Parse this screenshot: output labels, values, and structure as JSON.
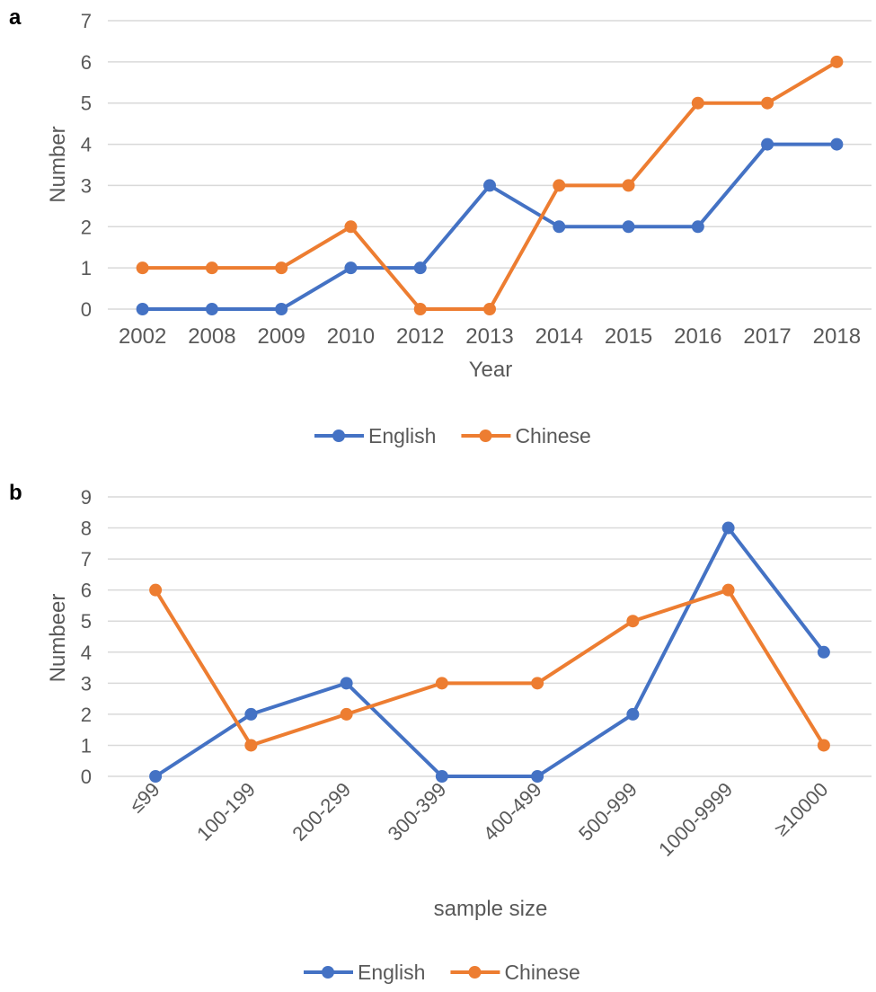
{
  "colors": {
    "english": "#4472c4",
    "chinese": "#ed7d31",
    "grid": "#d9d9d9",
    "text": "#595959"
  },
  "chart_data": [
    {
      "panel": "a",
      "type": "line",
      "xlabel": "Year",
      "ylabel": "Number",
      "ylim": [
        0,
        7
      ],
      "yticks": [
        "0",
        "1",
        "2",
        "3",
        "4",
        "5",
        "6",
        "7"
      ],
      "categories": [
        "2002",
        "2008",
        "2009",
        "2010",
        "2012",
        "2013",
        "2014",
        "2015",
        "2016",
        "2017",
        "2018"
      ],
      "series": [
        {
          "name": "English",
          "color": "#4472c4",
          "values": [
            0,
            0,
            0,
            1,
            1,
            3,
            2,
            2,
            2,
            4,
            4
          ]
        },
        {
          "name": "Chinese",
          "color": "#ed7d31",
          "values": [
            1,
            1,
            1,
            2,
            0,
            0,
            3,
            3,
            5,
            5,
            6
          ]
        }
      ],
      "grid": true,
      "legend": "bottom"
    },
    {
      "panel": "b",
      "type": "line",
      "xlabel": "sample size",
      "ylabel": "Numbeer",
      "ylim": [
        0,
        9
      ],
      "yticks": [
        "0",
        "1",
        "2",
        "3",
        "4",
        "5",
        "6",
        "7",
        "8",
        "9"
      ],
      "categories": [
        "≤99",
        "100-199",
        "200-299",
        "300-399",
        "400-499",
        "500-999",
        "1000-9999",
        "≥10000"
      ],
      "series": [
        {
          "name": "English",
          "color": "#4472c4",
          "values": [
            0,
            2,
            3,
            0,
            0,
            2,
            8,
            4
          ]
        },
        {
          "name": "Chinese",
          "color": "#ed7d31",
          "values": [
            6,
            1,
            2,
            3,
            3,
            5,
            6,
            1
          ]
        }
      ],
      "grid": true,
      "legend": "bottom"
    }
  ]
}
